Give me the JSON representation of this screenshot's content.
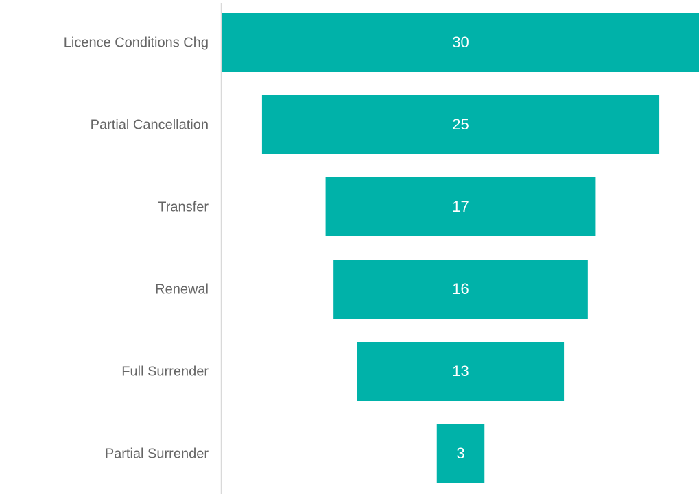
{
  "chart_data": {
    "type": "funnel",
    "categories": [
      "Licence Conditions Chg",
      "Partial Cancellation",
      "Transfer",
      "Renewal",
      "Full Surrender",
      "Partial Surrender"
    ],
    "values": [
      30,
      25,
      17,
      16,
      13,
      3
    ],
    "color": "#00b2a9"
  }
}
